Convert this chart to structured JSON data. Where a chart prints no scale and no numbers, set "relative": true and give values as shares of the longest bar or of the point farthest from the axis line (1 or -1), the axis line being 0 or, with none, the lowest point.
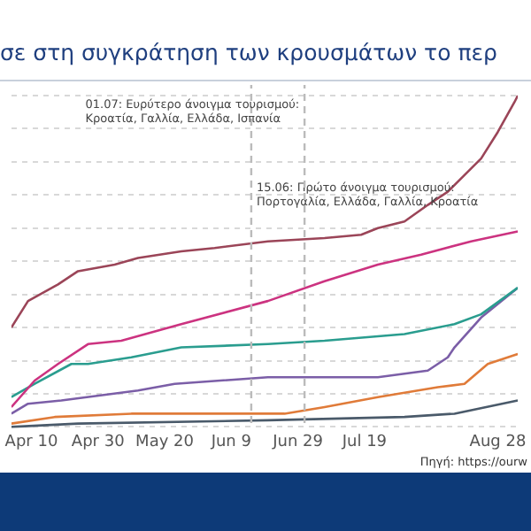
{
  "chart_data": {
    "type": "line",
    "title": "σε στη συγκράτηση των κρουσμάτων το περ",
    "relative": true,
    "grid": "y",
    "legend": false,
    "marker": "none",
    "line_style": "solid",
    "xlim": [
      "--04-04",
      "--09-03"
    ],
    "xticks": [
      {
        "value": "--04-10",
        "label": "Apr 10"
      },
      {
        "value": "--04-30",
        "label": "Apr 30"
      },
      {
        "value": "--05-20",
        "label": "May 20"
      },
      {
        "value": "--06-09",
        "label": "Jun 9"
      },
      {
        "value": "--06-29",
        "label": "Jun 29"
      },
      {
        "value": "--07-19",
        "label": "Jul 19"
      },
      {
        "value": "--08-28",
        "label": "Aug 28"
      }
    ],
    "ref_lines": [
      {
        "axis": "x",
        "value": "--06-15",
        "label": "15.06: Πρώτο άνοιγμα τουρισμού:\nΠορτογαλία, Ελλάδα, Γαλλία, Κροατία",
        "line_style": "dashed",
        "color": "#bbbbbb"
      },
      {
        "axis": "x",
        "value": "--07-01",
        "label": "01.07: Ευρύτερο άνοιγμα τουρισμού:\nΚροατία, Γαλλία, Ελλάδα, Ισπανία",
        "line_style": "dashed",
        "color": "#bbbbbb"
      }
    ],
    "annotations": [
      "Πηγή: https://ourw"
    ],
    "series": [
      {
        "color": "#9b4558",
        "x": [
          "--04-04",
          "--04-09",
          "--04-18",
          "--04-24",
          "--05-05",
          "--05-12",
          "--05-25",
          "--06-04",
          "--06-20",
          "--07-07",
          "--07-18",
          "--07-23",
          "--07-31",
          "--08-07",
          "--08-13",
          "--08-18",
          "--08-23",
          "--08-28",
          "--09-02",
          "--09-03"
        ],
        "values": [
          0.3,
          0.38,
          0.43,
          0.47,
          0.49,
          0.51,
          0.53,
          0.54,
          0.56,
          0.57,
          0.58,
          0.6,
          0.62,
          0.67,
          0.71,
          0.76,
          0.81,
          0.89,
          0.98,
          1
        ]
      },
      {
        "color": "#cc3380",
        "x": [
          "--04-04",
          "--04-11",
          "--04-18",
          "--04-27",
          "--05-07",
          "--05-25",
          "--06-20",
          "--07-07",
          "--07-23",
          "--08-05",
          "--08-20",
          "--09-03"
        ],
        "values": [
          0.06,
          0.14,
          0.19,
          0.25,
          0.26,
          0.31,
          0.38,
          0.44,
          0.49,
          0.52,
          0.56,
          0.59
        ]
      },
      {
        "color": "#2a9d8f",
        "x": [
          "--04-04",
          "--04-11",
          "--04-22",
          "--04-27",
          "--05-10",
          "--05-25",
          "--06-20",
          "--07-07",
          "--07-31",
          "--08-15",
          "--08-23",
          "--09-03"
        ],
        "values": [
          0.09,
          0.13,
          0.19,
          0.19,
          0.21,
          0.24,
          0.25,
          0.26,
          0.28,
          0.31,
          0.34,
          0.42
        ]
      },
      {
        "color": "#7b5ea7",
        "x": [
          "--04-04",
          "--04-09",
          "--04-19",
          "--05-12",
          "--05-23",
          "--06-20",
          "--07-23",
          "--08-07",
          "--08-13",
          "--08-15",
          "--08-23",
          "--09-03"
        ],
        "values": [
          0.04,
          0.07,
          0.08,
          0.11,
          0.13,
          0.15,
          0.15,
          0.17,
          0.21,
          0.24,
          0.33,
          0.42
        ]
      },
      {
        "color": "#e07b39",
        "x": [
          "--04-04",
          "--04-17",
          "--05-10",
          "--06-25",
          "--07-07",
          "--07-23",
          "--08-10",
          "--08-18",
          "--08-25",
          "--09-03"
        ],
        "values": [
          0.01,
          0.03,
          0.04,
          0.04,
          0.06,
          0.09,
          0.12,
          0.13,
          0.19,
          0.22
        ]
      },
      {
        "color": "#4a5a6a",
        "x": [
          "--04-04",
          "--04-24",
          "--06-20",
          "--07-31",
          "--08-15",
          "--09-03"
        ],
        "values": [
          0,
          0.01,
          0.02,
          0.03,
          0.04,
          0.08
        ]
      }
    ]
  }
}
